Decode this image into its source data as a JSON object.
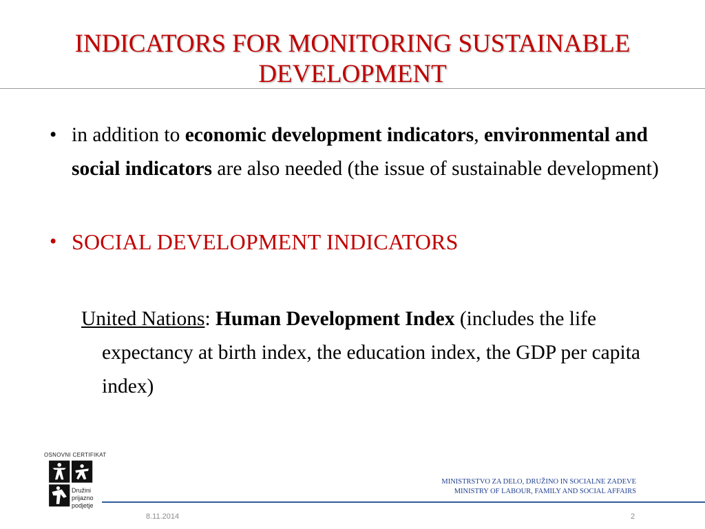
{
  "slide": {
    "title": "INDICATORS FOR MONITORING SUSTAINABLE DEVELOPMENT",
    "bullet1": {
      "t1": "in addition to ",
      "b1": "economic development indicators",
      "t2": ", ",
      "b2": "environmental and social indicators",
      "t3": " are also needed (the issue of sustainable development)"
    },
    "bullet2": {
      "heading": "SOCIAL DEVELOPMENT INDICATORS"
    },
    "sub": {
      "org": "United Nations",
      "colon": ": ",
      "index": "Human Development Index",
      "desc": " (includes the life expectancy at birth index, the education index, the GDP per capita index)"
    },
    "bullet_symbol": "•"
  },
  "logo": {
    "caption": "OSNOVNI CERTIFIKAT",
    "line1": "Družini",
    "line2": "prijazno",
    "line3": "podjetje"
  },
  "footer": {
    "ministry_si": "MINISTRSTVO ZA DELO, DRUŽINO IN SOCIALNE ZADEVE",
    "ministry_en": "MINISTRY OF LABOUR, FAMILY AND SOCIAL AFFAIRS",
    "date": "8.11.2014",
    "page": "2"
  },
  "colors": {
    "title": "#c00000",
    "accent_line": "#2f5a9a",
    "ministry_text": "#1f3f8f"
  }
}
